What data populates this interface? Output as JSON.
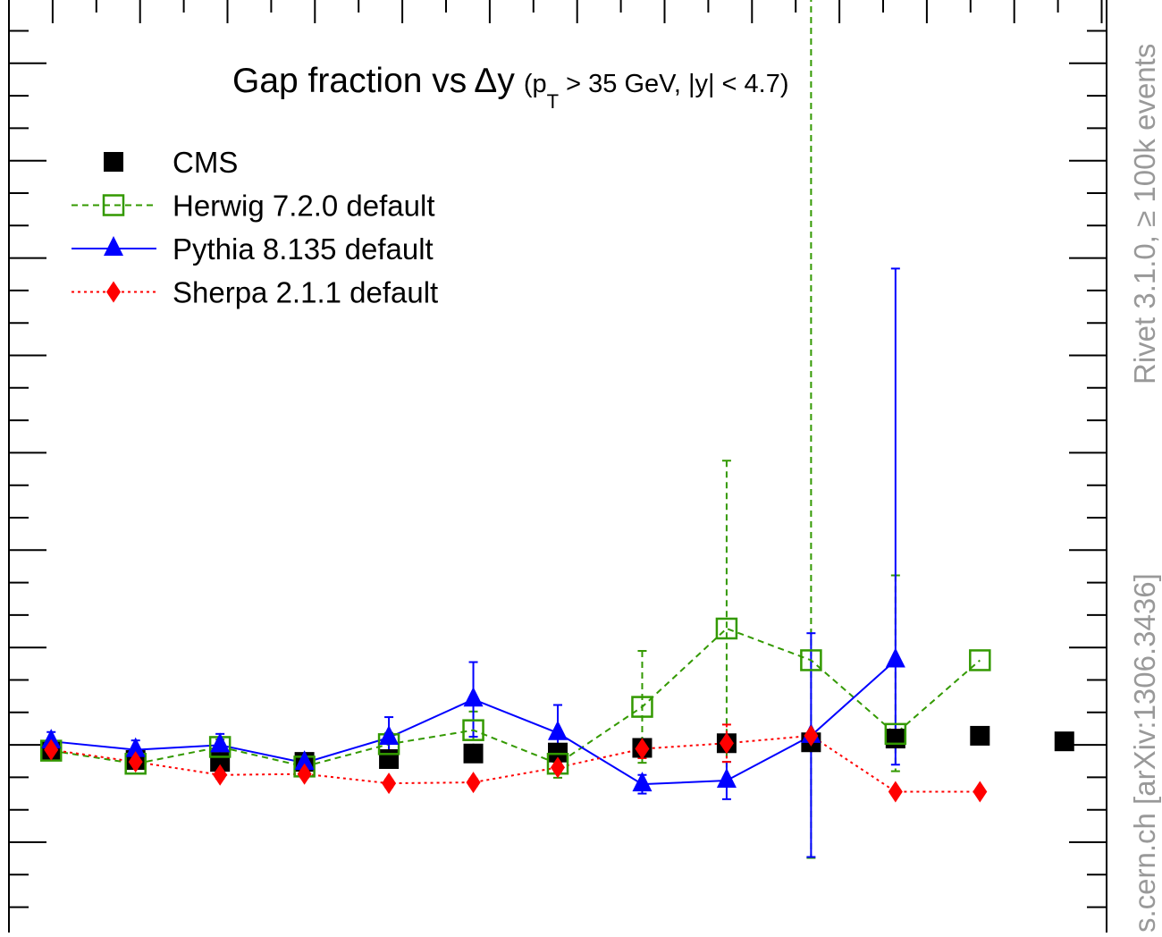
{
  "chart_data": {
    "type": "scatter",
    "title_main": "Gap fraction vs",
    "title_delta": "Δy",
    "title_sub_pre": "(p",
    "title_sub_T": "T",
    "title_sub_post": " > 35 GeV, |y| < 4.7)",
    "watermark_top": "Rivet 3.1.0, ≥ 100k events",
    "watermark_bottom": "s.cern.ch [arXiv:1306.3436]",
    "xlim": [
      1,
      7.5
    ],
    "ylim": [
      0,
      1
    ],
    "x": [
      1.25,
      1.75,
      2.25,
      2.75,
      3.25,
      3.75,
      4.25,
      4.75,
      5.25,
      5.75,
      6.25,
      6.75,
      7.25
    ],
    "series": [
      {
        "name": "CMS",
        "color": "#000000",
        "marker": "square",
        "line": "none",
        "values": [
          0.195,
          0.185,
          0.183,
          0.183,
          0.186,
          0.192,
          0.193,
          0.198,
          0.203,
          0.204,
          0.208,
          0.211,
          0.205
        ],
        "err_lo": [
          0,
          0,
          0,
          0,
          0,
          0,
          0,
          0,
          0,
          0,
          0,
          0,
          0
        ],
        "err_hi": [
          0,
          0,
          0,
          0,
          0,
          0,
          0,
          0,
          0,
          0,
          0,
          0,
          0
        ]
      },
      {
        "name": "Herwig 7.2.0 default",
        "color": "#339900",
        "marker": "open-square",
        "line": "dashed",
        "values": [
          0.195,
          0.181,
          0.199,
          0.178,
          0.202,
          0.217,
          0.181,
          0.242,
          0.326,
          0.292,
          0.213,
          0.292
        ],
        "err_lo": [
          0.003,
          0.004,
          0.008,
          0.005,
          0.012,
          0.02,
          0.015,
          0.06,
          0.16,
          0.212,
          0.04,
          0.0
        ],
        "err_hi": [
          0.003,
          0.004,
          0.008,
          0.005,
          0.012,
          0.02,
          0.015,
          0.06,
          0.18,
          0.72,
          0.17,
          0.0
        ]
      },
      {
        "name": "Pythia 8.135 default",
        "color": "#0000ff",
        "marker": "triangle",
        "line": "solid",
        "values": [
          0.205,
          0.196,
          0.201,
          0.182,
          0.209,
          0.25,
          0.214,
          0.159,
          0.163,
          0.211,
          0.292
        ],
        "err_lo": [
          0.01,
          0.01,
          0.012,
          0.008,
          0.022,
          0.04,
          0.03,
          0.01,
          0.02,
          0.13,
          0.112
        ],
        "err_hi": [
          0.01,
          0.01,
          0.012,
          0.008,
          0.022,
          0.04,
          0.03,
          0.01,
          0.02,
          0.11,
          0.42
        ]
      },
      {
        "name": "Sherpa 2.1.1 default",
        "color": "#ff0000",
        "marker": "diamond",
        "line": "dotted",
        "values": [
          0.196,
          0.183,
          0.169,
          0.17,
          0.16,
          0.161,
          0.177,
          0.197,
          0.203,
          0.211,
          0.151,
          0.151
        ],
        "err_lo": [
          0.003,
          0.004,
          0.004,
          0.004,
          0.004,
          0.004,
          0.006,
          0.01,
          0.02,
          0.0,
          0.0,
          0.0
        ],
        "err_hi": [
          0.003,
          0.004,
          0.004,
          0.004,
          0.004,
          0.004,
          0.006,
          0.01,
          0.02,
          0.0,
          0.0,
          0.0
        ]
      }
    ]
  }
}
